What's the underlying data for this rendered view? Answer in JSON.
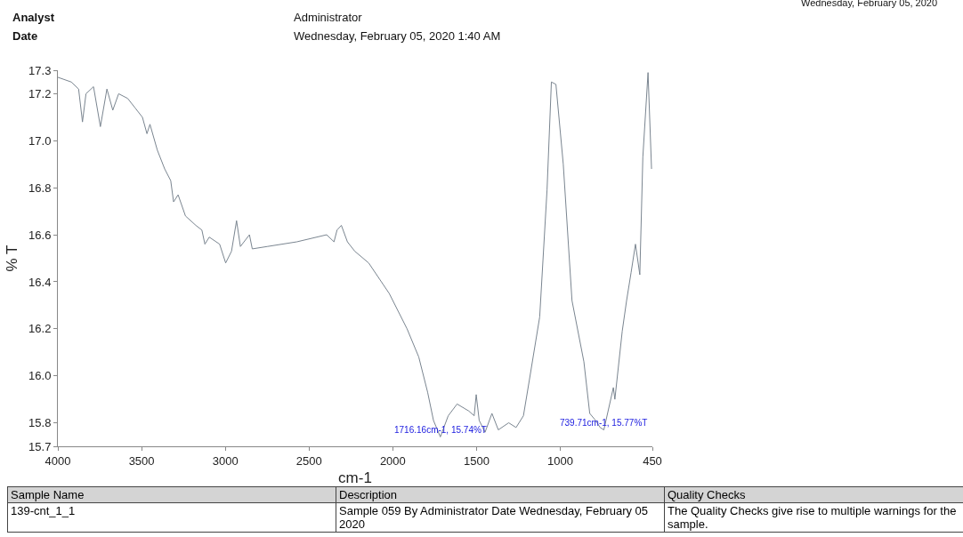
{
  "chart_data": {
    "type": "line",
    "xlabel": "cm-1",
    "ylabel": "% T",
    "x": [
      4000,
      3920,
      3876,
      3853,
      3832,
      3787,
      3746,
      3707,
      3672,
      3637,
      3583,
      3539,
      3495,
      3468,
      3450,
      3406,
      3362,
      3326,
      3309,
      3282,
      3238,
      3176,
      3140,
      3122,
      3096,
      3034,
      2998,
      2963,
      2933,
      2910,
      2856,
      2839,
      2750,
      2573,
      2395,
      2351,
      2333,
      2307,
      2271,
      2227,
      2144,
      2021,
      1915,
      1845,
      1792,
      1757,
      1716.16,
      1669,
      1616,
      1546,
      1514,
      1502,
      1484,
      1449,
      1408,
      1370,
      1308,
      1264,
      1220,
      1185,
      1123,
      1079,
      1053,
      1026,
      982,
      930,
      859,
      824,
      789,
      762,
      739.71,
      683,
      674,
      630,
      604,
      577,
      551,
      525,
      507,
      476,
      455
    ],
    "series": [
      {
        "color": "#7a8590",
        "values": [
          17.27,
          17.25,
          17.22,
          17.08,
          17.2,
          17.23,
          17.06,
          17.22,
          17.13,
          17.2,
          17.18,
          17.14,
          17.1,
          17.03,
          17.07,
          16.96,
          16.88,
          16.83,
          16.74,
          16.77,
          16.68,
          16.64,
          16.62,
          16.56,
          16.59,
          16.56,
          16.48,
          16.53,
          16.66,
          16.55,
          16.6,
          16.54,
          16.55,
          16.57,
          16.6,
          16.57,
          16.62,
          16.64,
          16.57,
          16.53,
          16.48,
          16.35,
          16.2,
          16.08,
          15.93,
          15.81,
          15.74,
          15.83,
          15.88,
          15.85,
          15.83,
          15.92,
          15.81,
          15.76,
          15.84,
          15.77,
          15.8,
          15.78,
          15.83,
          15.98,
          16.25,
          16.79,
          17.25,
          17.24,
          16.9,
          16.32,
          16.06,
          15.84,
          15.81,
          15.78,
          15.77,
          15.95,
          15.9,
          16.19,
          16.32,
          16.44,
          16.56,
          16.43,
          16.93,
          17.29,
          16.88
        ]
      }
    ],
    "xlim": [
      4000,
      450
    ],
    "xticks": [
      4000,
      3500,
      3000,
      2500,
      2000,
      1500,
      1000,
      450
    ],
    "ylim": [
      15.7,
      17.3
    ],
    "yticks": [
      15.7,
      15.8,
      {
        "value": 16,
        "label": "16.0"
      },
      16.2,
      16.4,
      16.6,
      16.8,
      {
        "value": 17,
        "label": "17.0"
      },
      17.2,
      17.3
    ],
    "grid": false,
    "marker": "none",
    "line_style": "solid",
    "annotations": [
      "Analyst",
      "Date",
      "Administrator",
      "Wednesday, February 05, 2020 1:40 AM",
      "Wednesday, February 05, 2020",
      "Sample Name",
      "Description",
      "Quality Checks",
      "139-cnt_1_1",
      "Sample 059 By Administrator Date Wednesday, February 05 2020",
      "The Quality Checks give rise to multiple warnings for the sample.",
      {
        "text": "1716.16cm-1, 15.74%T",
        "x": 1716.16,
        "y": 15.74
      },
      {
        "text": "739.71cm-1, 15.77%T",
        "x": 739.71,
        "y": 15.77
      }
    ]
  }
}
